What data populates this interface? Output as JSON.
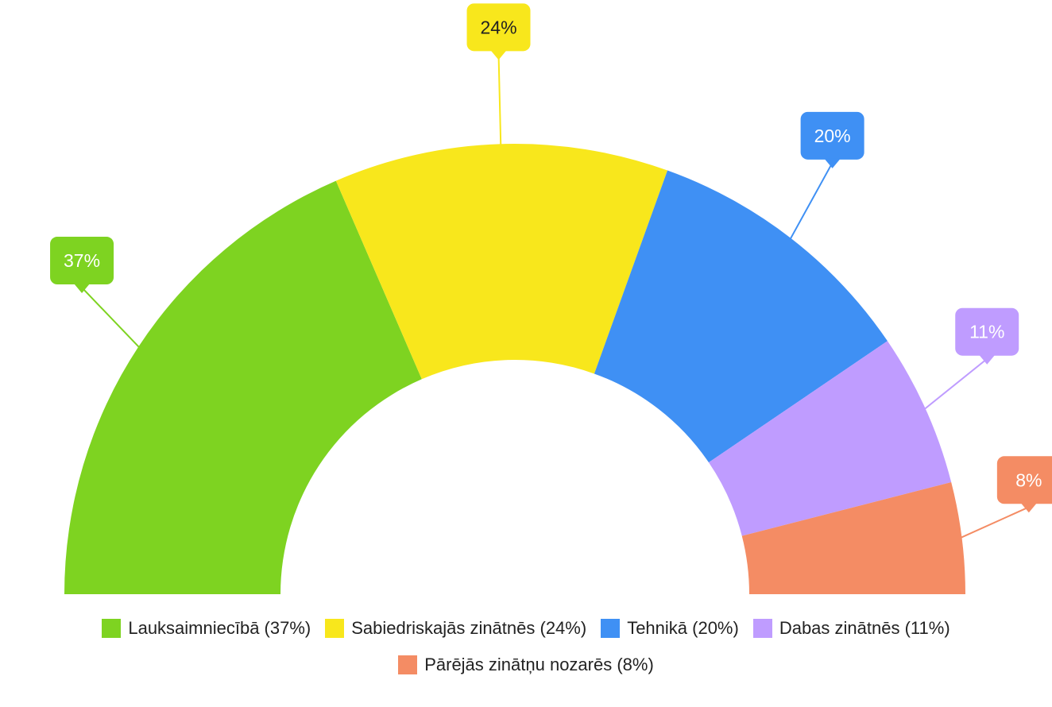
{
  "chart_data": {
    "type": "pie",
    "subtype": "semi-donut",
    "title": "",
    "legend_position": "bottom",
    "categories": [
      "Lauksaimniecībā",
      "Sabiedriskajās zinātnēs",
      "Tehnikā",
      "Dabas zinātnēs",
      "Pārējās zinātņu nozarēs"
    ],
    "values": [
      37,
      24,
      20,
      11,
      8
    ],
    "value_labels": [
      "37%",
      "24%",
      "20%",
      "11%",
      "8%"
    ],
    "legend_labels": [
      "Lauksaimniecībā (37%)",
      "Sabiedriskajās zinātnēs (24%)",
      "Tehnikā (20%)",
      "Dabas zinātnēs (11%)",
      "Pārējās zinātņu nozarēs (8%)"
    ],
    "colors": [
      "#7ed321",
      "#f8e71c",
      "#3f90f4",
      "#bf9cff",
      "#f48c64"
    ],
    "label_text_colors": [
      "#ffffff",
      "#222222",
      "#ffffff",
      "#ffffff",
      "#ffffff"
    ]
  }
}
